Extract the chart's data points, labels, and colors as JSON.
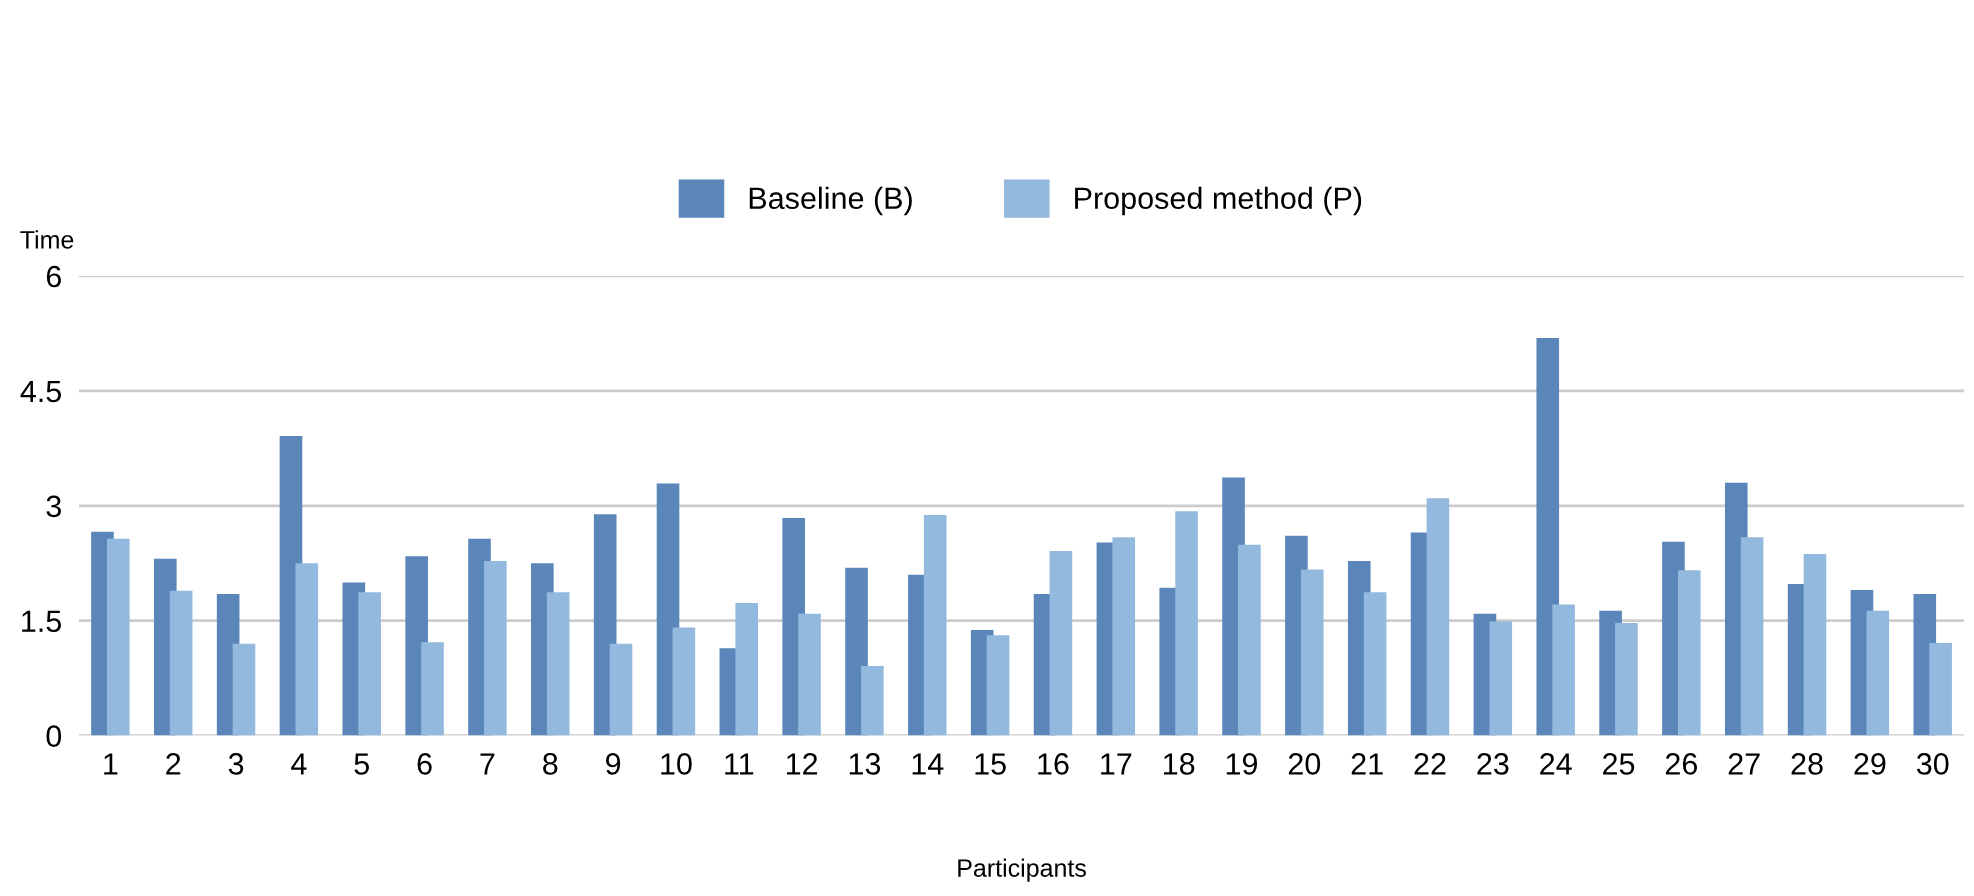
{
  "chart_data": {
    "type": "bar",
    "xlabel": "Participants",
    "ylabel": "Time",
    "categories": [
      "1",
      "2",
      "3",
      "4",
      "5",
      "6",
      "7",
      "8",
      "9",
      "10",
      "11",
      "12",
      "13",
      "14",
      "15",
      "16",
      "17",
      "18",
      "19",
      "20",
      "21",
      "22",
      "23",
      "24",
      "25",
      "26",
      "27",
      "28",
      "29",
      "30"
    ],
    "series": [
      {
        "name": "Baseline (B)",
        "color": "#5b86b9",
        "values": [
          2.66,
          2.31,
          1.85,
          3.91,
          2.0,
          2.34,
          2.57,
          2.25,
          2.89,
          3.29,
          1.14,
          2.84,
          2.19,
          2.1,
          1.38,
          1.85,
          2.52,
          1.93,
          3.37,
          2.61,
          2.28,
          2.65,
          1.59,
          5.19,
          1.63,
          2.53,
          3.3,
          1.98,
          1.9,
          1.85
        ]
      },
      {
        "name": "Proposed method (P)",
        "color": "#93bade",
        "values": [
          2.57,
          1.89,
          1.2,
          2.25,
          1.87,
          1.22,
          2.28,
          1.87,
          1.2,
          1.41,
          1.73,
          1.59,
          0.91,
          2.88,
          1.31,
          2.41,
          2.59,
          2.93,
          2.49,
          2.17,
          1.87,
          3.1,
          1.49,
          1.71,
          1.47,
          2.16,
          2.59,
          2.37,
          1.63,
          1.21
        ]
      }
    ],
    "ylim": [
      0,
      6
    ],
    "yticks": [
      0,
      1.5,
      3,
      4.5,
      6
    ],
    "grid": "y",
    "legend": "top"
  }
}
